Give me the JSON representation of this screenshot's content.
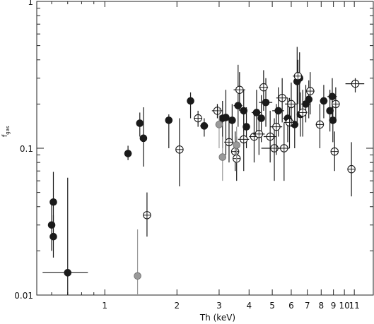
{
  "chart_data": {
    "type": "scatter",
    "xlabel": "Th (keV)",
    "ylabel": "f",
    "ylabel_subscript": "gas",
    "x_scale": "log",
    "y_scale": "log",
    "xlim": [
      0.52,
      13.2
    ],
    "ylim": [
      0.01,
      1
    ],
    "x_ticks": [
      {
        "value": 1,
        "label": "1"
      },
      {
        "value": 2,
        "label": "2"
      },
      {
        "value": 3,
        "label": "3"
      },
      {
        "value": 4,
        "label": "4"
      },
      {
        "value": 5,
        "label": "5"
      },
      {
        "value": 6,
        "label": "6"
      },
      {
        "value": 7,
        "label": "7"
      },
      {
        "value": 8,
        "label": "8"
      },
      {
        "value": 9,
        "label": "9"
      },
      {
        "value": 10,
        "label": "10"
      },
      {
        "value": 11,
        "label": "11"
      }
    ],
    "y_ticks": [
      {
        "value": 0.01,
        "label": "0.01"
      },
      {
        "value": 0.1,
        "label": "0.1"
      },
      {
        "value": 1,
        "label": "1"
      }
    ],
    "series": [
      {
        "style": "filled",
        "color": "#1a1a1a",
        "points": [
          {
            "x": 0.6,
            "y": 0.03,
            "xerr": 0.02,
            "ylo": 0.02,
            "yhi": 0.044
          },
          {
            "x": 0.61,
            "y": 0.025,
            "xerr": 0.0,
            "ylo": 0.018,
            "yhi": 0.035
          },
          {
            "x": 0.61,
            "y": 0.043,
            "xerr": 0.01,
            "ylo": 0.03,
            "yhi": 0.069
          },
          {
            "x": 0.7,
            "y": 0.0142,
            "xerr": 0.15,
            "ylo": 0.0095,
            "yhi": 0.063
          },
          {
            "x": 1.25,
            "y": 0.092,
            "xerr": 0.0,
            "ylo": 0.083,
            "yhi": 0.104
          },
          {
            "x": 1.4,
            "y": 0.148,
            "xerr": 0.03,
            "ylo": 0.12,
            "yhi": 0.175
          },
          {
            "x": 1.45,
            "y": 0.117,
            "xerr": 0.0,
            "ylo": 0.075,
            "yhi": 0.19
          },
          {
            "x": 1.85,
            "y": 0.155,
            "xerr": 0.0,
            "ylo": 0.1,
            "yhi": 0.17
          },
          {
            "x": 2.28,
            "y": 0.21,
            "xerr": 0.0,
            "ylo": 0.16,
            "yhi": 0.24
          },
          {
            "x": 2.6,
            "y": 0.142,
            "xerr": 0.1,
            "ylo": 0.12,
            "yhi": 0.16
          },
          {
            "x": 3.1,
            "y": 0.16,
            "xerr": 0.05,
            "ylo": 0.1,
            "yhi": 0.21
          },
          {
            "x": 3.2,
            "y": 0.162,
            "xerr": 0.06,
            "ylo": 0.09,
            "yhi": 0.25
          },
          {
            "x": 3.4,
            "y": 0.155,
            "xerr": 0.1,
            "ylo": 0.11,
            "yhi": 0.2
          },
          {
            "x": 3.6,
            "y": 0.195,
            "xerr": 0.15,
            "ylo": 0.14,
            "yhi": 0.37
          },
          {
            "x": 3.8,
            "y": 0.18,
            "xerr": 0.12,
            "ylo": 0.13,
            "yhi": 0.25
          },
          {
            "x": 3.9,
            "y": 0.14,
            "xerr": 0.1,
            "ylo": 0.1,
            "yhi": 0.19
          },
          {
            "x": 4.3,
            "y": 0.175,
            "xerr": 0.2,
            "ylo": 0.12,
            "yhi": 0.25
          },
          {
            "x": 4.5,
            "y": 0.16,
            "xerr": 0.15,
            "ylo": 0.11,
            "yhi": 0.23
          },
          {
            "x": 4.7,
            "y": 0.205,
            "xerr": 0.3,
            "ylo": 0.14,
            "yhi": 0.3
          },
          {
            "x": 5.3,
            "y": 0.18,
            "xerr": 0.3,
            "ylo": 0.12,
            "yhi": 0.26
          },
          {
            "x": 5.8,
            "y": 0.16,
            "xerr": 0.25,
            "ylo": 0.11,
            "yhi": 0.22
          },
          {
            "x": 6.2,
            "y": 0.145,
            "xerr": 0.15,
            "ylo": 0.1,
            "yhi": 0.2
          },
          {
            "x": 6.35,
            "y": 0.285,
            "xerr": 0.15,
            "ylo": 0.15,
            "yhi": 0.49
          },
          {
            "x": 6.5,
            "y": 0.3,
            "xerr": 0.1,
            "ylo": 0.18,
            "yhi": 0.45
          },
          {
            "x": 6.55,
            "y": 0.17,
            "xerr": 0.2,
            "ylo": 0.12,
            "yhi": 0.24
          },
          {
            "x": 6.9,
            "y": 0.2,
            "xerr": 0.3,
            "ylo": 0.15,
            "yhi": 0.27
          },
          {
            "x": 7.1,
            "y": 0.215,
            "xerr": 0.2,
            "ylo": 0.16,
            "yhi": 0.29
          },
          {
            "x": 8.2,
            "y": 0.21,
            "xerr": 0.3,
            "ylo": 0.16,
            "yhi": 0.27
          },
          {
            "x": 8.7,
            "y": 0.18,
            "xerr": 0.3,
            "ylo": 0.13,
            "yhi": 0.25
          },
          {
            "x": 8.9,
            "y": 0.225,
            "xerr": 0.4,
            "ylo": 0.16,
            "yhi": 0.3
          },
          {
            "x": 8.95,
            "y": 0.155,
            "xerr": 0.3,
            "ylo": 0.11,
            "yhi": 0.21
          }
        ]
      },
      {
        "style": "open",
        "color": "#1a1a1a",
        "points": [
          {
            "x": 1.5,
            "y": 0.035,
            "xerr": 0.05,
            "ylo": 0.025,
            "yhi": 0.05
          },
          {
            "x": 2.05,
            "y": 0.098,
            "xerr": 0.0,
            "ylo": 0.055,
            "yhi": 0.16
          },
          {
            "x": 2.45,
            "y": 0.16,
            "xerr": 0.1,
            "ylo": 0.14,
            "yhi": 0.18
          },
          {
            "x": 2.95,
            "y": 0.18,
            "xerr": 0.15,
            "ylo": 0.16,
            "yhi": 0.2
          },
          {
            "x": 3.3,
            "y": 0.11,
            "xerr": 0.15,
            "ylo": 0.08,
            "yhi": 0.16
          },
          {
            "x": 3.5,
            "y": 0.095,
            "xerr": 0.1,
            "ylo": 0.07,
            "yhi": 0.13
          },
          {
            "x": 3.55,
            "y": 0.085,
            "xerr": 0.1,
            "ylo": 0.06,
            "yhi": 0.12
          },
          {
            "x": 3.65,
            "y": 0.25,
            "xerr": 0.2,
            "ylo": 0.18,
            "yhi": 0.33
          },
          {
            "x": 3.8,
            "y": 0.115,
            "xerr": 0.2,
            "ylo": 0.07,
            "yhi": 0.18
          },
          {
            "x": 4.2,
            "y": 0.12,
            "xerr": 0.2,
            "ylo": 0.08,
            "yhi": 0.18
          },
          {
            "x": 4.4,
            "y": 0.125,
            "xerr": 0.25,
            "ylo": 0.09,
            "yhi": 0.18
          },
          {
            "x": 4.6,
            "y": 0.26,
            "xerr": 0.2,
            "ylo": 0.18,
            "yhi": 0.34
          },
          {
            "x": 4.9,
            "y": 0.12,
            "xerr": 0.3,
            "ylo": 0.08,
            "yhi": 0.18
          },
          {
            "x": 5.1,
            "y": 0.1,
            "xerr": 0.6,
            "ylo": 0.06,
            "yhi": 0.16
          },
          {
            "x": 5.2,
            "y": 0.14,
            "xerr": 0.3,
            "ylo": 0.09,
            "yhi": 0.2
          },
          {
            "x": 5.5,
            "y": 0.22,
            "xerr": 0.3,
            "ylo": 0.15,
            "yhi": 0.3
          },
          {
            "x": 5.6,
            "y": 0.1,
            "xerr": 0.3,
            "ylo": 0.06,
            "yhi": 0.15
          },
          {
            "x": 5.9,
            "y": 0.15,
            "xerr": 0.3,
            "ylo": 0.1,
            "yhi": 0.22
          },
          {
            "x": 6.0,
            "y": 0.2,
            "xerr": 0.35,
            "ylo": 0.14,
            "yhi": 0.28
          },
          {
            "x": 6.4,
            "y": 0.31,
            "xerr": 0.3,
            "ylo": 0.2,
            "yhi": 0.4
          },
          {
            "x": 6.7,
            "y": 0.175,
            "xerr": 0.3,
            "ylo": 0.12,
            "yhi": 0.25
          },
          {
            "x": 7.2,
            "y": 0.245,
            "xerr": 0.3,
            "ylo": 0.17,
            "yhi": 0.33
          },
          {
            "x": 7.9,
            "y": 0.145,
            "xerr": 0.3,
            "ylo": 0.1,
            "yhi": 0.2
          },
          {
            "x": 9.1,
            "y": 0.095,
            "xerr": 0.3,
            "ylo": 0.07,
            "yhi": 0.13
          },
          {
            "x": 9.2,
            "y": 0.2,
            "xerr": 0.3,
            "ylo": 0.15,
            "yhi": 0.26
          },
          {
            "x": 10.7,
            "y": 0.072,
            "xerr": 0.0,
            "ylo": 0.047,
            "yhi": 0.11
          },
          {
            "x": 11.1,
            "y": 0.275,
            "xerr": 1.0,
            "ylo": 0.24,
            "yhi": 0.3
          }
        ]
      },
      {
        "style": "gray",
        "color": "#9a9a9a",
        "points": [
          {
            "x": 1.37,
            "y": 0.0135,
            "xerr": 0.0,
            "ylo": 0.0095,
            "yhi": 0.028
          },
          {
            "x": 3.0,
            "y": 0.145,
            "xerr": 0.05,
            "ylo": 0.1,
            "yhi": 0.19
          },
          {
            "x": 3.1,
            "y": 0.087,
            "xerr": 0.05,
            "ylo": 0.06,
            "yhi": 0.12
          },
          {
            "x": 3.55,
            "y": 0.105,
            "xerr": 0.1,
            "ylo": 0.08,
            "yhi": 0.14
          }
        ]
      }
    ]
  }
}
